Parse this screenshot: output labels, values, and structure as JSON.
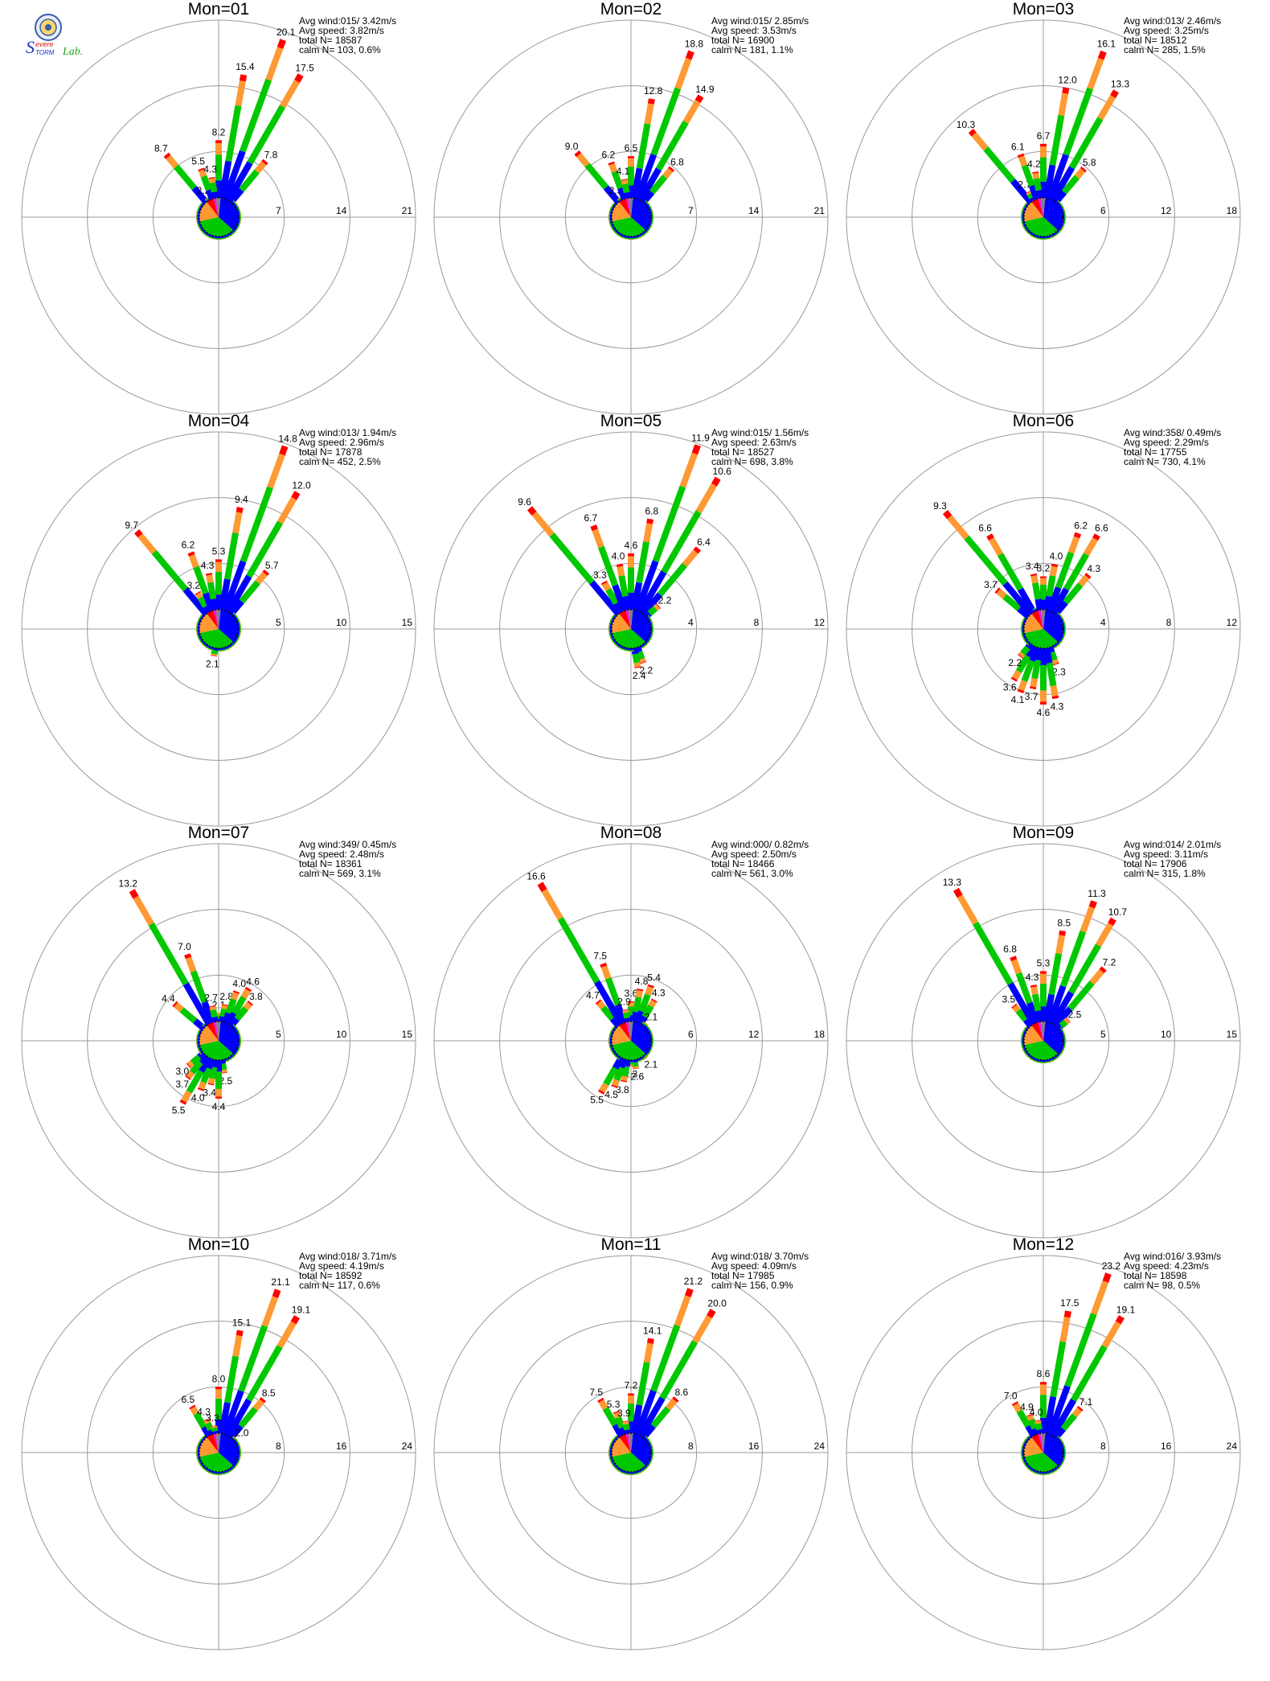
{
  "logo": {
    "text_line1": "Severe",
    "text_line2": "Storm",
    "text_line3": "Lab.",
    "colors": [
      "#1a35c8",
      "#e01010",
      "#1aa81a"
    ]
  },
  "legend_colors": {
    "calm_ring": "#000000",
    "speed_classes": [
      "#0000ff",
      "#00c800",
      "#ff9933",
      "#ff0000",
      "#ff00ff",
      "#808080"
    ]
  },
  "chart_data": [
    {
      "type": "windrose",
      "title": "Mon=01",
      "rings": [
        7,
        14,
        21
      ],
      "stats": [
        "Avg wind:015/ 3.42m/s",
        "Avg speed: 3.82m/s",
        "total N=     18587",
        "calm N=   103,   0.6%"
      ],
      "sector_deg": 10,
      "labeled_petals": [
        {
          "dir": 320,
          "value": 8.7
        },
        {
          "dir": 330,
          "value": 2.2
        },
        {
          "dir": 340,
          "value": 5.5
        },
        {
          "dir": 350,
          "value": 4.3
        },
        {
          "dir": 0,
          "value": 8.2
        },
        {
          "dir": 10,
          "value": 15.4
        },
        {
          "dir": 20,
          "value": 20.1
        },
        {
          "dir": 30,
          "value": 17.5
        },
        {
          "dir": 40,
          "value": 7.8
        }
      ]
    },
    {
      "type": "windrose",
      "title": "Mon=02",
      "rings": [
        7,
        14,
        21
      ],
      "stats": [
        "Avg wind:015/ 2.85m/s",
        "Avg speed: 3.53m/s",
        "total N=     16900",
        "calm N=   181,   1.1%"
      ],
      "sector_deg": 10,
      "labeled_petals": [
        {
          "dir": 320,
          "value": 9.0
        },
        {
          "dir": 330,
          "value": 2.3
        },
        {
          "dir": 340,
          "value": 6.2
        },
        {
          "dir": 350,
          "value": 4.1
        },
        {
          "dir": 0,
          "value": 6.5
        },
        {
          "dir": 10,
          "value": 12.8
        },
        {
          "dir": 20,
          "value": 18.8
        },
        {
          "dir": 30,
          "value": 14.9
        },
        {
          "dir": 40,
          "value": 6.8
        }
      ]
    },
    {
      "type": "windrose",
      "title": "Mon=03",
      "rings": [
        6,
        12,
        18
      ],
      "stats": [
        "Avg wind:013/ 2.46m/s",
        "Avg speed: 3.25m/s",
        "total N=     18512",
        "calm N=   285,   1.5%"
      ],
      "sector_deg": 10,
      "labeled_petals": [
        {
          "dir": 320,
          "value": 10.3
        },
        {
          "dir": 330,
          "value": 2.7
        },
        {
          "dir": 340,
          "value": 6.1
        },
        {
          "dir": 350,
          "value": 4.2
        },
        {
          "dir": 0,
          "value": 6.7
        },
        {
          "dir": 10,
          "value": 12.0
        },
        {
          "dir": 20,
          "value": 16.1
        },
        {
          "dir": 30,
          "value": 13.3
        },
        {
          "dir": 40,
          "value": 5.8
        }
      ]
    },
    {
      "type": "windrose",
      "title": "Mon=04",
      "rings": [
        5,
        10,
        15
      ],
      "stats": [
        "Avg wind:013/ 1.94m/s",
        "Avg speed: 2.96m/s",
        "total N=     17878",
        "calm N=   452,   2.5%"
      ],
      "sector_deg": 10,
      "labeled_petals": [
        {
          "dir": 320,
          "value": 9.7
        },
        {
          "dir": 330,
          "value": 3.2
        },
        {
          "dir": 340,
          "value": 6.2
        },
        {
          "dir": 350,
          "value": 4.3
        },
        {
          "dir": 0,
          "value": 5.3
        },
        {
          "dir": 10,
          "value": 9.4
        },
        {
          "dir": 20,
          "value": 14.8
        },
        {
          "dir": 30,
          "value": 12.0
        },
        {
          "dir": 40,
          "value": 5.7
        },
        {
          "dir": 190,
          "value": 2.1
        }
      ]
    },
    {
      "type": "windrose",
      "title": "Mon=05",
      "rings": [
        4,
        8,
        12
      ],
      "stats": [
        "Avg wind:015/ 1.56m/s",
        "Avg speed: 2.63m/s",
        "total N=     18527",
        "calm N=   698,   3.8%"
      ],
      "sector_deg": 10,
      "labeled_petals": [
        {
          "dir": 320,
          "value": 9.6
        },
        {
          "dir": 330,
          "value": 3.3
        },
        {
          "dir": 340,
          "value": 6.7
        },
        {
          "dir": 350,
          "value": 4.0
        },
        {
          "dir": 0,
          "value": 4.6
        },
        {
          "dir": 10,
          "value": 6.8
        },
        {
          "dir": 20,
          "value": 11.9
        },
        {
          "dir": 30,
          "value": 10.6
        },
        {
          "dir": 40,
          "value": 6.4
        },
        {
          "dir": 50,
          "value": 2.2
        },
        {
          "dir": 170,
          "value": 2.4
        },
        {
          "dir": 160,
          "value": 2.2
        }
      ]
    },
    {
      "type": "windrose",
      "title": "Mon=06",
      "rings": [
        4,
        8,
        12
      ],
      "stats": [
        "Avg wind:358/ 0.49m/s",
        "Avg speed: 2.29m/s",
        "total N=     17755",
        "calm N=   730,   4.1%"
      ],
      "sector_deg": 10,
      "labeled_petals": [
        {
          "dir": 320,
          "value": 9.3
        },
        {
          "dir": 310,
          "value": 3.7
        },
        {
          "dir": 330,
          "value": 6.6
        },
        {
          "dir": 350,
          "value": 3.4
        },
        {
          "dir": 0,
          "value": 3.2
        },
        {
          "dir": 10,
          "value": 4.0
        },
        {
          "dir": 20,
          "value": 6.2
        },
        {
          "dir": 30,
          "value": 6.6
        },
        {
          "dir": 40,
          "value": 4.3
        },
        {
          "dir": 160,
          "value": 2.3
        },
        {
          "dir": 170,
          "value": 4.3
        },
        {
          "dir": 180,
          "value": 4.6
        },
        {
          "dir": 190,
          "value": 3.7
        },
        {
          "dir": 200,
          "value": 4.1
        },
        {
          "dir": 210,
          "value": 3.6
        },
        {
          "dir": 220,
          "value": 2.2
        }
      ]
    },
    {
      "type": "windrose",
      "title": "Mon=07",
      "rings": [
        5,
        10,
        15
      ],
      "stats": [
        "Avg wind:349/ 0.45m/s",
        "Avg speed: 2.48m/s",
        "total N=     18361",
        "calm N=   569,   3.1%"
      ],
      "sector_deg": 10,
      "labeled_petals": [
        {
          "dir": 310,
          "value": 4.4
        },
        {
          "dir": 330,
          "value": 13.2
        },
        {
          "dir": 340,
          "value": 7.0
        },
        {
          "dir": 350,
          "value": 2.7
        },
        {
          "dir": 0,
          "value": 2.1
        },
        {
          "dir": 10,
          "value": 2.8
        },
        {
          "dir": 20,
          "value": 4.0
        },
        {
          "dir": 30,
          "value": 4.6
        },
        {
          "dir": 40,
          "value": 3.8
        },
        {
          "dir": 170,
          "value": 2.5
        },
        {
          "dir": 180,
          "value": 4.4
        },
        {
          "dir": 190,
          "value": 3.4
        },
        {
          "dir": 200,
          "value": 4.0
        },
        {
          "dir": 210,
          "value": 5.5
        },
        {
          "dir": 220,
          "value": 3.7
        },
        {
          "dir": 230,
          "value": 3.0
        }
      ]
    },
    {
      "type": "windrose",
      "title": "Mon=08",
      "rings": [
        6,
        12,
        18
      ],
      "stats": [
        "Avg wind:000/ 0.82m/s",
        "Avg speed: 2.50m/s",
        "total N=     18466",
        "calm N=   561,   3.0%"
      ],
      "sector_deg": 10,
      "labeled_petals": [
        {
          "dir": 320,
          "value": 4.7
        },
        {
          "dir": 330,
          "value": 16.6
        },
        {
          "dir": 340,
          "value": 7.5
        },
        {
          "dir": 350,
          "value": 2.9
        },
        {
          "dir": 0,
          "value": 3.6
        },
        {
          "dir": 10,
          "value": 4.8
        },
        {
          "dir": 20,
          "value": 5.4
        },
        {
          "dir": 30,
          "value": 4.3
        },
        {
          "dir": 40,
          "value": 2.1
        },
        {
          "dir": 140,
          "value": 2.1
        },
        {
          "dir": 170,
          "value": 2.6
        },
        {
          "dir": 180,
          "value": 2.3
        },
        {
          "dir": 190,
          "value": 3.8
        },
        {
          "dir": 200,
          "value": 4.5
        },
        {
          "dir": 210,
          "value": 5.5
        }
      ]
    },
    {
      "type": "windrose",
      "title": "Mon=09",
      "rings": [
        5,
        10,
        15
      ],
      "stats": [
        "Avg wind:014/ 2.01m/s",
        "Avg speed: 3.11m/s",
        "total N=     17906",
        "calm N=   315,   1.8%"
      ],
      "sector_deg": 10,
      "labeled_petals": [
        {
          "dir": 320,
          "value": 3.5
        },
        {
          "dir": 330,
          "value": 13.3
        },
        {
          "dir": 340,
          "value": 6.8
        },
        {
          "dir": 350,
          "value": 4.3
        },
        {
          "dir": 0,
          "value": 5.3
        },
        {
          "dir": 10,
          "value": 8.5
        },
        {
          "dir": 20,
          "value": 11.3
        },
        {
          "dir": 30,
          "value": 10.7
        },
        {
          "dir": 40,
          "value": 7.2
        },
        {
          "dir": 50,
          "value": 2.5
        }
      ]
    },
    {
      "type": "windrose",
      "title": "Mon=10",
      "rings": [
        8,
        16,
        24
      ],
      "stats": [
        "Avg wind:018/ 3.71m/s",
        "Avg speed: 4.19m/s",
        "total N=     18592",
        "calm N=   117,   0.6%"
      ],
      "sector_deg": 10,
      "labeled_petals": [
        {
          "dir": 330,
          "value": 6.5
        },
        {
          "dir": 340,
          "value": 4.3
        },
        {
          "dir": 350,
          "value": 3.3
        },
        {
          "dir": 0,
          "value": 8.0
        },
        {
          "dir": 10,
          "value": 15.1
        },
        {
          "dir": 20,
          "value": 21.1
        },
        {
          "dir": 30,
          "value": 19.1
        },
        {
          "dir": 40,
          "value": 8.5
        },
        {
          "dir": 50,
          "value": 2.0
        }
      ]
    },
    {
      "type": "windrose",
      "title": "Mon=11",
      "rings": [
        8,
        16,
        24
      ],
      "stats": [
        "Avg wind:018/ 3.70m/s",
        "Avg speed: 4.09m/s",
        "total N=     17985",
        "calm N=   156,   0.9%"
      ],
      "sector_deg": 10,
      "labeled_petals": [
        {
          "dir": 330,
          "value": 7.5
        },
        {
          "dir": 340,
          "value": 5.3
        },
        {
          "dir": 350,
          "value": 3.9
        },
        {
          "dir": 0,
          "value": 7.2
        },
        {
          "dir": 10,
          "value": 14.1
        },
        {
          "dir": 20,
          "value": 21.2
        },
        {
          "dir": 30,
          "value": 20.0
        },
        {
          "dir": 40,
          "value": 8.6
        }
      ]
    },
    {
      "type": "windrose",
      "title": "Mon=12",
      "rings": [
        8,
        16,
        24
      ],
      "stats": [
        "Avg wind:016/ 3.93m/s",
        "Avg speed: 4.23m/s",
        "total N=     18598",
        "calm N=    98,   0.5%"
      ],
      "sector_deg": 10,
      "labeled_petals": [
        {
          "dir": 330,
          "value": 7.0
        },
        {
          "dir": 340,
          "value": 4.9
        },
        {
          "dir": 350,
          "value": 4.0
        },
        {
          "dir": 0,
          "value": 8.6
        },
        {
          "dir": 10,
          "value": 17.5
        },
        {
          "dir": 20,
          "value": 23.2
        },
        {
          "dir": 30,
          "value": 19.1
        },
        {
          "dir": 40,
          "value": 7.1
        }
      ]
    }
  ]
}
